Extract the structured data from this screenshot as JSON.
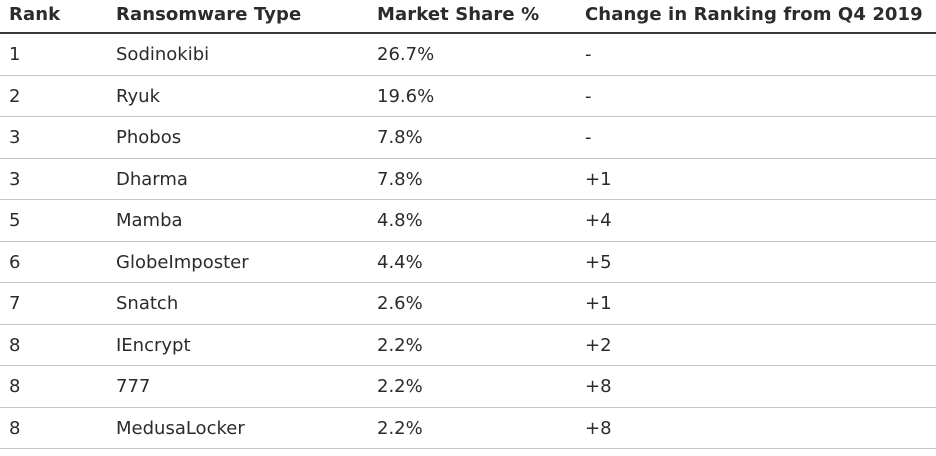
{
  "table": {
    "headers": {
      "rank": "Rank",
      "type": "Ransomware Type",
      "share": "Market Share %",
      "change": "Change in Ranking from Q4 2019"
    },
    "rows": [
      {
        "rank": "1",
        "type": "Sodinokibi",
        "share": "26.7%",
        "change": "-"
      },
      {
        "rank": "2",
        "type": "Ryuk",
        "share": "19.6%",
        "change": "-"
      },
      {
        "rank": "3",
        "type": "Phobos",
        "share": "7.8%",
        "change": "-"
      },
      {
        "rank": "3",
        "type": "Dharma",
        "share": "7.8%",
        "change": "+1"
      },
      {
        "rank": "5",
        "type": "Mamba",
        "share": "4.8%",
        "change": "+4"
      },
      {
        "rank": "6",
        "type": "GlobeImposter",
        "share": "4.4%",
        "change": "+5"
      },
      {
        "rank": "7",
        "type": "Snatch",
        "share": "2.6%",
        "change": "+1"
      },
      {
        "rank": "8",
        "type": "IEncrypt",
        "share": "2.2%",
        "change": "+2"
      },
      {
        "rank": "8",
        "type": "777",
        "share": "2.2%",
        "change": "+8"
      },
      {
        "rank": "8",
        "type": "MedusaLocker",
        "share": "2.2%",
        "change": "+8"
      }
    ]
  }
}
